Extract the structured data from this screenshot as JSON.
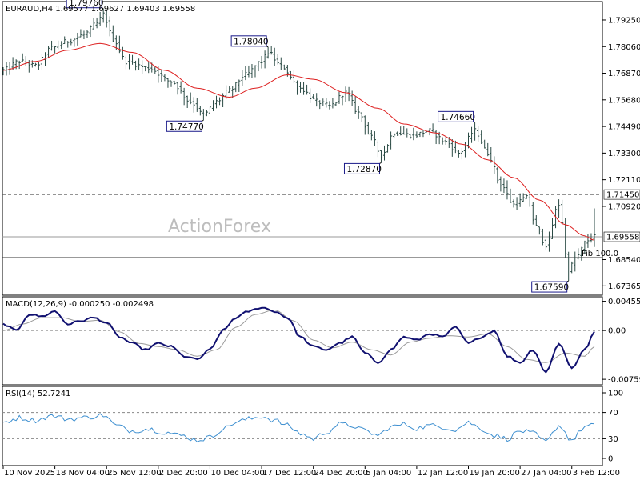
{
  "chart_data": {
    "type": "ohlc",
    "symbol_header": "EURAUD,H4  1.69577 1.69627 1.69403 1.69558",
    "watermark": "ActionForex",
    "price_panel": {
      "ylim": [
        1.6702,
        1.8
      ],
      "yticks": [
        "1.79250",
        "1.78060",
        "1.76870",
        "1.75680",
        "1.74490",
        "1.73300",
        "1.72110",
        "1.70920",
        "1.68540",
        "1.67365"
      ],
      "ytick_values": [
        1.7925,
        1.7806,
        1.7687,
        1.7568,
        1.7449,
        1.733,
        1.7211,
        1.7092,
        1.6854,
        1.67365
      ],
      "resistance_level": 1.7145,
      "resistance_label": "1.71450",
      "current_price": 1.69558,
      "current_price_label": "1.69558",
      "fib_level": 1.6863,
      "fib_label": "Fib 100.0",
      "annotations": [
        {
          "label": "1.79760",
          "bar": 31,
          "value": 1.7976,
          "position": "above"
        },
        {
          "label": "1.74770",
          "bar": 62,
          "value": 1.7477,
          "position": "below"
        },
        {
          "label": "1.78040",
          "bar": 82,
          "value": 1.7804,
          "position": "above"
        },
        {
          "label": "1.72870",
          "bar": 117,
          "value": 1.7287,
          "position": "below"
        },
        {
          "label": "1.74660",
          "bar": 146,
          "value": 1.7466,
          "position": "above"
        },
        {
          "label": "1.67590",
          "bar": 175,
          "value": 1.6759,
          "position": "below"
        }
      ],
      "close_anchors": [
        [
          0,
          1.77
        ],
        [
          5,
          1.774
        ],
        [
          10,
          1.772
        ],
        [
          15,
          1.78
        ],
        [
          20,
          1.783
        ],
        [
          25,
          1.786
        ],
        [
          29,
          1.791
        ],
        [
          31,
          1.795
        ],
        [
          34,
          1.784
        ],
        [
          38,
          1.774
        ],
        [
          45,
          1.771
        ],
        [
          52,
          1.765
        ],
        [
          58,
          1.756
        ],
        [
          62,
          1.75
        ],
        [
          66,
          1.756
        ],
        [
          70,
          1.761
        ],
        [
          75,
          1.768
        ],
        [
          80,
          1.774
        ],
        [
          82,
          1.778
        ],
        [
          86,
          1.772
        ],
        [
          92,
          1.762
        ],
        [
          97,
          1.756
        ],
        [
          101,
          1.754
        ],
        [
          106,
          1.76
        ],
        [
          110,
          1.751
        ],
        [
          114,
          1.74
        ],
        [
          117,
          1.732
        ],
        [
          121,
          1.742
        ],
        [
          127,
          1.741
        ],
        [
          132,
          1.743
        ],
        [
          137,
          1.738
        ],
        [
          141,
          1.733
        ],
        [
          146,
          1.743
        ],
        [
          150,
          1.733
        ],
        [
          154,
          1.719
        ],
        [
          158,
          1.71
        ],
        [
          162,
          1.713
        ],
        [
          165,
          1.7
        ],
        [
          168,
          1.692
        ],
        [
          172,
          1.71
        ],
        [
          175,
          1.68
        ],
        [
          177,
          1.686
        ],
        [
          181,
          1.694
        ],
        [
          183,
          1.6956
        ]
      ],
      "ma_anchors": [
        [
          0,
          1.77
        ],
        [
          10,
          1.774
        ],
        [
          20,
          1.779
        ],
        [
          30,
          1.782
        ],
        [
          40,
          1.778
        ],
        [
          50,
          1.77
        ],
        [
          60,
          1.762
        ],
        [
          70,
          1.758
        ],
        [
          78,
          1.762
        ],
        [
          88,
          1.768
        ],
        [
          96,
          1.766
        ],
        [
          106,
          1.76
        ],
        [
          116,
          1.753
        ],
        [
          124,
          1.746
        ],
        [
          134,
          1.742
        ],
        [
          142,
          1.737
        ],
        [
          150,
          1.73
        ],
        [
          158,
          1.722
        ],
        [
          166,
          1.712
        ],
        [
          174,
          1.701
        ],
        [
          180,
          1.696
        ],
        [
          183,
          1.694
        ]
      ]
    },
    "macd_panel": {
      "label": "MACD(12,26,9) -0.000250 -0.002498",
      "ylim": [
        -0.0082,
        0.005
      ],
      "yticks": [
        "0.004553",
        "0.00",
        "-0.007593"
      ],
      "ytick_values": [
        0.004553,
        0.0,
        -0.007593
      ],
      "macd_anchors": [
        [
          0,
          0.001
        ],
        [
          4,
          0.0
        ],
        [
          8,
          0.0025
        ],
        [
          12,
          0.0022
        ],
        [
          16,
          0.003
        ],
        [
          20,
          0.001
        ],
        [
          24,
          0.0015
        ],
        [
          28,
          0.002
        ],
        [
          32,
          0.0012
        ],
        [
          36,
          -0.001
        ],
        [
          40,
          -0.002
        ],
        [
          44,
          -0.003
        ],
        [
          48,
          -0.002
        ],
        [
          52,
          -0.0025
        ],
        [
          56,
          -0.004
        ],
        [
          60,
          -0.0045
        ],
        [
          64,
          -0.003
        ],
        [
          68,
          0.0
        ],
        [
          72,
          0.002
        ],
        [
          76,
          0.003
        ],
        [
          80,
          0.0036
        ],
        [
          84,
          0.003
        ],
        [
          88,
          0.002
        ],
        [
          92,
          -0.001
        ],
        [
          96,
          -0.0025
        ],
        [
          100,
          -0.003
        ],
        [
          104,
          -0.002
        ],
        [
          108,
          -0.001
        ],
        [
          112,
          -0.0035
        ],
        [
          116,
          -0.005
        ],
        [
          120,
          -0.003
        ],
        [
          124,
          -0.001
        ],
        [
          128,
          -0.0015
        ],
        [
          132,
          -0.0005
        ],
        [
          136,
          -0.001
        ],
        [
          140,
          0.0005
        ],
        [
          144,
          -0.002
        ],
        [
          148,
          -0.001
        ],
        [
          152,
          0.0
        ],
        [
          156,
          -0.004
        ],
        [
          160,
          -0.005
        ],
        [
          164,
          -0.003
        ],
        [
          168,
          -0.0065
        ],
        [
          172,
          -0.002
        ],
        [
          176,
          -0.0058
        ],
        [
          180,
          -0.003
        ],
        [
          183,
          -0.0003
        ]
      ],
      "signal_anchors": [
        [
          0,
          0.0
        ],
        [
          6,
          0.001
        ],
        [
          12,
          0.002
        ],
        [
          18,
          0.002
        ],
        [
          24,
          0.0014
        ],
        [
          30,
          0.0016
        ],
        [
          36,
          -0.0002
        ],
        [
          42,
          -0.002
        ],
        [
          48,
          -0.0025
        ],
        [
          54,
          -0.003
        ],
        [
          60,
          -0.004
        ],
        [
          66,
          -0.003
        ],
        [
          72,
          0.0005
        ],
        [
          78,
          0.0025
        ],
        [
          84,
          0.0032
        ],
        [
          90,
          0.0015
        ],
        [
          96,
          -0.0015
        ],
        [
          102,
          -0.0027
        ],
        [
          108,
          -0.0018
        ],
        [
          114,
          -0.003
        ],
        [
          120,
          -0.0038
        ],
        [
          126,
          -0.0018
        ],
        [
          132,
          -0.0012
        ],
        [
          138,
          -0.0008
        ],
        [
          144,
          -0.001
        ],
        [
          150,
          -0.0005
        ],
        [
          156,
          -0.0025
        ],
        [
          162,
          -0.0045
        ],
        [
          168,
          -0.005
        ],
        [
          174,
          -0.0035
        ],
        [
          180,
          -0.004
        ],
        [
          183,
          -0.0025
        ]
      ]
    },
    "rsi_panel": {
      "label": "RSI(14) 52.7241",
      "ylim": [
        0,
        100
      ],
      "yticks": [
        "100",
        "70",
        "30",
        "0"
      ],
      "ytick_values": [
        100,
        70,
        30,
        0
      ],
      "levels": [
        70,
        30
      ],
      "rsi_anchors": [
        [
          0,
          55
        ],
        [
          5,
          62
        ],
        [
          10,
          58
        ],
        [
          15,
          65
        ],
        [
          20,
          60
        ],
        [
          25,
          62
        ],
        [
          31,
          66
        ],
        [
          35,
          50
        ],
        [
          40,
          42
        ],
        [
          45,
          45
        ],
        [
          50,
          40
        ],
        [
          55,
          35
        ],
        [
          60,
          28
        ],
        [
          64,
          32
        ],
        [
          68,
          45
        ],
        [
          72,
          55
        ],
        [
          76,
          60
        ],
        [
          80,
          64
        ],
        [
          84,
          58
        ],
        [
          88,
          50
        ],
        [
          92,
          38
        ],
        [
          96,
          30
        ],
        [
          100,
          40
        ],
        [
          104,
          52
        ],
        [
          108,
          50
        ],
        [
          112,
          42
        ],
        [
          116,
          35
        ],
        [
          120,
          48
        ],
        [
          124,
          52
        ],
        [
          128,
          46
        ],
        [
          132,
          50
        ],
        [
          136,
          48
        ],
        [
          140,
          44
        ],
        [
          144,
          55
        ],
        [
          148,
          45
        ],
        [
          152,
          35
        ],
        [
          156,
          30
        ],
        [
          160,
          42
        ],
        [
          164,
          38
        ],
        [
          168,
          25
        ],
        [
          172,
          50
        ],
        [
          176,
          28
        ],
        [
          180,
          48
        ],
        [
          183,
          52.7
        ]
      ]
    },
    "x_labels": [
      {
        "label": "10 Nov 2025",
        "bar": 0
      },
      {
        "label": "18 Nov 04:00",
        "bar": 16
      },
      {
        "label": "25 Nov 12:00",
        "bar": 32
      },
      {
        "label": "2 Dec 20:00",
        "bar": 48
      },
      {
        "label": "10 Dec 04:00",
        "bar": 64
      },
      {
        "label": "17 Dec 12:00",
        "bar": 80
      },
      {
        "label": "24 Dec 20:00",
        "bar": 96
      },
      {
        "label": "5 Jan 04:00",
        "bar": 112
      },
      {
        "label": "12 Jan 12:00",
        "bar": 128
      },
      {
        "label": "19 Jan 20:00",
        "bar": 144
      },
      {
        "label": "27 Jan 04:00",
        "bar": 160
      },
      {
        "label": "3 Feb 12:00",
        "bar": 176
      }
    ],
    "bar_count": 184,
    "colors": {
      "bars": "#2a4a44",
      "ma": "#dd1f1f",
      "macd": "#101070",
      "signal": "#9a9a9a",
      "rsi": "#3d8fd0",
      "grid": "#888888",
      "callout_border": "#1a1a8a"
    }
  }
}
